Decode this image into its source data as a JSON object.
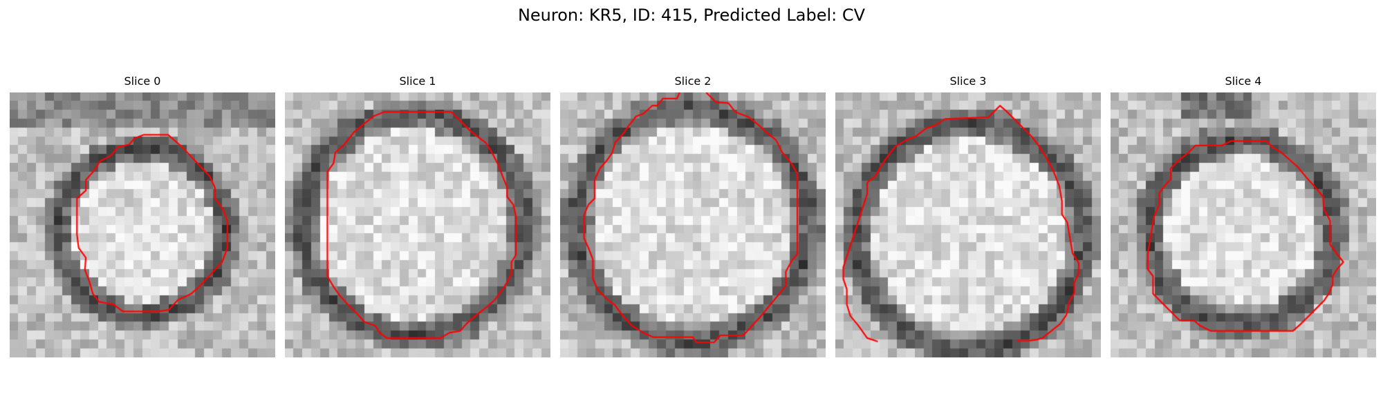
{
  "figure": {
    "title": "Neuron: KR5, ID: 415, Predicted Label: CV"
  },
  "panels": [
    {
      "title": "Slice 0",
      "ring": "dark-membrane-ring",
      "contour_color": "#ff0000"
    },
    {
      "title": "Slice 1",
      "ring": "dark-membrane-ring",
      "contour_color": "#ff0000"
    },
    {
      "title": "Slice 2",
      "ring": "dark-membrane-ring",
      "contour_color": "#ff0000"
    },
    {
      "title": "Slice 3",
      "ring": "dark-membrane-ring",
      "contour_color": "#ff0000"
    },
    {
      "title": "Slice 4",
      "ring": "dark-membrane-ring",
      "contour_color": "#ff0000"
    }
  ],
  "colors": {
    "contour": "#ff0000",
    "membrane_dark": "#303030",
    "interior_light": "#e6e6e6",
    "background_gray": "#b8b8b8"
  }
}
